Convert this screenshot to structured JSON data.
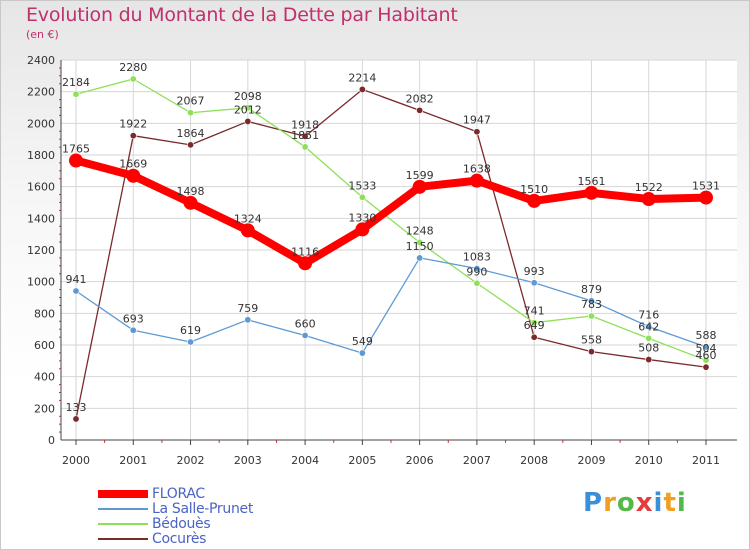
{
  "header": {
    "title": "Evolution du Montant de la Dette par Habitant",
    "subtitle": "(en €)"
  },
  "chart_data": {
    "type": "line",
    "title": "Evolution du Montant de la Dette par Habitant",
    "ylabel": "(en €)",
    "xlabel": "",
    "categories": [
      "2000",
      "2001",
      "2002",
      "2003",
      "2004",
      "2005",
      "2006",
      "2007",
      "2008",
      "2009",
      "2010",
      "2011"
    ],
    "ylim": [
      0,
      2400
    ],
    "yticks": [
      0,
      200,
      400,
      600,
      800,
      1000,
      1200,
      1400,
      1600,
      1800,
      2000,
      2200,
      2400
    ],
    "grid": true,
    "legend_position": "bottom-left",
    "series": [
      {
        "name": "FLORAC",
        "color": "#ff0000",
        "values": [
          1765,
          1669,
          1498,
          1324,
          1116,
          1330,
          1599,
          1638,
          1510,
          1561,
          1522,
          1531
        ]
      },
      {
        "name": "La Salle-Prunet",
        "color": "#5d9ad4",
        "values": [
          941,
          693,
          619,
          759,
          660,
          549,
          1150,
          1083,
          993,
          879,
          716,
          588
        ]
      },
      {
        "name": "Bédouès",
        "color": "#8ee05a",
        "values": [
          2184,
          2280,
          2067,
          2098,
          1851,
          1533,
          1248,
          990,
          741,
          783,
          642,
          504
        ]
      },
      {
        "name": "Cocurès",
        "color": "#7a2a2a",
        "values": [
          133,
          1922,
          1864,
          2012,
          1918,
          2214,
          2082,
          1947,
          649,
          558,
          508,
          460
        ]
      }
    ]
  },
  "brand": {
    "letters": [
      "P",
      "r",
      "o",
      "x",
      "i",
      "t",
      "i"
    ],
    "colors": [
      "#3a8fd8",
      "#f0a020",
      "#56b848",
      "#e83a3a",
      "#3a8fd8",
      "#f0a020",
      "#56b848"
    ]
  }
}
